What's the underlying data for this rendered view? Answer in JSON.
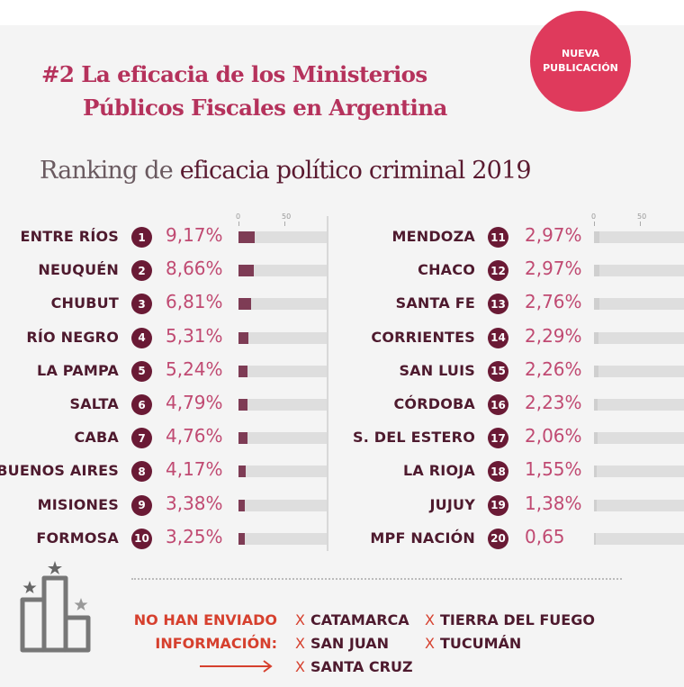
{
  "header": {
    "title_line1": "#2 La eficacia de los Ministerios",
    "title_line2": "Públicos Fiscales en Argentina",
    "badge_line1": "NUEVA",
    "badge_line2": "PUBLICACIÓN",
    "subtitle_plain": "Ranking de ",
    "subtitle_strong": "eficacia político criminal 2019"
  },
  "colors": {
    "title": "#b5325c",
    "badge": "#df3a5c",
    "rank_badge": "#6a1a35",
    "value_text": "#c04a72",
    "bar_fill": "#7e3c55",
    "bar_track": "#dedede",
    "missing_label": "#d6402e"
  },
  "chart_data": {
    "type": "bar",
    "title": "Ranking de eficacia político criminal 2019",
    "xlabel": "",
    "ylabel": "",
    "axis_ticks": [
      "0",
      "50"
    ],
    "xlim": [
      0,
      50
    ],
    "unit": "%",
    "categories": [
      "ENTRE RÍOS",
      "NEUQUÉN",
      "CHUBUT",
      "RÍO NEGRO",
      "LA PAMPA",
      "SALTA",
      "CABA",
      "BUENOS AIRES",
      "MISIONES",
      "FORMOSA",
      "MENDOZA",
      "CHACO",
      "SANTA FE",
      "CORRIENTES",
      "SAN LUIS",
      "CÓRDOBA",
      "S. DEL ESTERO",
      "LA RIOJA",
      "JUJUY",
      "MPF NACIÓN"
    ],
    "ranks": [
      1,
      2,
      3,
      4,
      5,
      6,
      7,
      8,
      9,
      10,
      11,
      12,
      13,
      14,
      15,
      16,
      17,
      18,
      19,
      20
    ],
    "values": [
      9.17,
      8.66,
      6.81,
      5.31,
      5.24,
      4.79,
      4.76,
      4.17,
      3.38,
      3.25,
      2.97,
      2.97,
      2.76,
      2.29,
      2.26,
      2.23,
      2.06,
      1.55,
      1.38,
      0.65
    ],
    "value_labels": [
      "9,17%",
      "8,66%",
      "6,81%",
      "5,31%",
      "5,24%",
      "4,79%",
      "4,76%",
      "4,17%",
      "3,38%",
      "3,25%",
      "2,97%",
      "2,97%",
      "2,76%",
      "2,29%",
      "2,26%",
      "2,23%",
      "2,06%",
      "1,55%",
      "1,38%",
      "0,65"
    ]
  },
  "missing": {
    "label_line1": "NO HAN ENVIADO",
    "label_line2": "INFORMACIÓN:",
    "x_mark": "X",
    "provinces": [
      "CATAMARCA",
      "TIERRA DEL FUEGO",
      "SAN JUAN",
      "TUCUMÁN",
      "SANTA CRUZ"
    ]
  }
}
